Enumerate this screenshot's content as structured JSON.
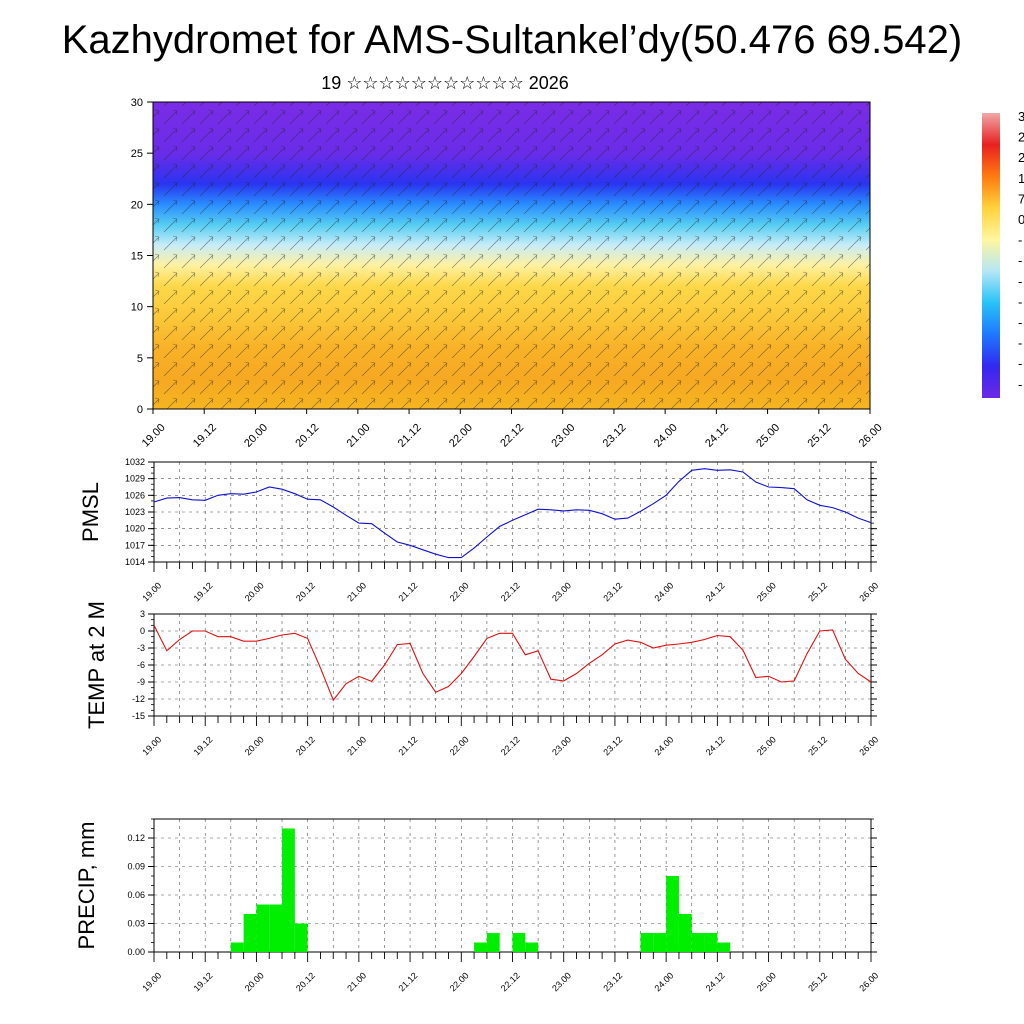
{
  "header": {
    "title": "Kazhydromet for AMS-Sultankel’dy(50.476 69.542)",
    "subtitle": "19 ☆☆☆☆☆☆☆☆☆☆☆ 2026"
  },
  "x_ticks": [
    "19.00",
    "19.12",
    "20.00",
    "20.12",
    "21.00",
    "21.12",
    "22.00",
    "22.12",
    "23.00",
    "23.12",
    "24.00",
    "24.12",
    "25.00",
    "25.12",
    "26.00"
  ],
  "colorbar": {
    "labels": [
      "3",
      "2",
      "2",
      "1",
      "7",
      "0",
      "-",
      "-",
      "-",
      "-",
      "-",
      "-",
      "-",
      "-"
    ],
    "colors": [
      "#f0a8a8",
      "#e82020",
      "#ff7a10",
      "#ffd23c",
      "#fff6a0",
      "#b4e6f6",
      "#28c3f5",
      "#1e78ff",
      "#3228f0",
      "#6e28e6"
    ]
  },
  "chart_data": [
    {
      "type": "heatmap",
      "title": "",
      "ylim": [
        0,
        30
      ],
      "y_ticks": [
        0,
        5,
        10,
        15,
        20,
        25,
        30
      ],
      "x_ticks": [
        "19.00",
        "19.12",
        "20.00",
        "20.12",
        "21.00",
        "21.12",
        "22.00",
        "22.12",
        "23.00",
        "23.12",
        "24.00",
        "24.12",
        "25.00",
        "25.12",
        "26.00"
      ],
      "rows": [
        {
          "level": 0,
          "color": "#f5b520"
        },
        {
          "level": 3,
          "color": "#f6a822"
        },
        {
          "level": 6,
          "color": "#f8b228"
        },
        {
          "level": 9,
          "color": "#fbc83a"
        },
        {
          "level": 12,
          "color": "#fdd84a"
        },
        {
          "level": 14,
          "color": "#fff0a0"
        },
        {
          "level": 16,
          "color": "#c8ecf8"
        },
        {
          "level": 18,
          "color": "#56cdf2"
        },
        {
          "level": 20,
          "color": "#2a8cff"
        },
        {
          "level": 22,
          "color": "#2a34f0"
        },
        {
          "level": 25,
          "color": "#6a2ce8"
        },
        {
          "level": 30,
          "color": "#7a2ce6"
        }
      ],
      "vectors": "wind barbs"
    },
    {
      "type": "line",
      "ylabel": "PMSL",
      "ylim": [
        1014,
        1032
      ],
      "y_ticks": [
        1014,
        1017,
        1020,
        1023,
        1026,
        1029,
        1032
      ],
      "color": "#1010d0",
      "x_ticks": [
        "19.00",
        "19.12",
        "20.00",
        "20.12",
        "21.00",
        "21.12",
        "22.00",
        "22.12",
        "23.00",
        "23.12",
        "24.00",
        "24.12",
        "25.00",
        "25.12",
        "26.00"
      ],
      "x": [
        0,
        3,
        6,
        9,
        12,
        15,
        18,
        21,
        24,
        27,
        30,
        33,
        36,
        39,
        42,
        45,
        48,
        51,
        54,
        57,
        60,
        63,
        66,
        69,
        72,
        75,
        78,
        81,
        84,
        87,
        90,
        93,
        96,
        99,
        102,
        105,
        108,
        111,
        114,
        117,
        120,
        123,
        126,
        129,
        132,
        135,
        138,
        141,
        144,
        147,
        150,
        153,
        156,
        159,
        162,
        165,
        168
      ],
      "values": [
        1024.8,
        1025.5,
        1025.6,
        1025.2,
        1025.1,
        1026.0,
        1026.3,
        1026.2,
        1026.6,
        1027.5,
        1027.1,
        1026.3,
        1025.3,
        1025.2,
        1023.9,
        1022.4,
        1021.0,
        1020.9,
        1019.2,
        1017.6,
        1017.0,
        1016.2,
        1015.4,
        1014.8,
        1014.8,
        1016.5,
        1018.5,
        1020.4,
        1021.5,
        1022.5,
        1023.5,
        1023.4,
        1023.2,
        1023.4,
        1023.3,
        1022.7,
        1021.7,
        1021.9,
        1023.1,
        1024.5,
        1026.0,
        1028.5,
        1030.5,
        1030.8,
        1030.5,
        1030.6,
        1030.2,
        1028.4,
        1027.5,
        1027.4,
        1027.2,
        1025.2,
        1024.2,
        1023.8,
        1023.0,
        1021.9,
        1021.1
      ]
    },
    {
      "type": "line",
      "ylabel": "TEMP at 2 M",
      "ylim": [
        -15,
        3
      ],
      "y_ticks": [
        -15,
        -12,
        -9,
        -6,
        -3,
        0,
        3
      ],
      "color": "#e01010",
      "x_ticks": [
        "19.00",
        "19.12",
        "20.00",
        "20.12",
        "21.00",
        "21.12",
        "22.00",
        "22.12",
        "23.00",
        "23.12",
        "24.00",
        "24.12",
        "25.00",
        "25.12",
        "26.00"
      ],
      "x": [
        0,
        3,
        6,
        9,
        12,
        15,
        18,
        21,
        24,
        27,
        30,
        33,
        36,
        39,
        42,
        45,
        48,
        51,
        54,
        57,
        60,
        63,
        66,
        69,
        72,
        75,
        78,
        81,
        84,
        87,
        90,
        93,
        96,
        99,
        102,
        105,
        108,
        111,
        114,
        117,
        120,
        123,
        126,
        129,
        132,
        135,
        138,
        141,
        144,
        147,
        150,
        153,
        156,
        159,
        162,
        165,
        168
      ],
      "values": [
        1.0,
        -3.5,
        -1.5,
        0.0,
        0.0,
        -1.0,
        -1.0,
        -1.8,
        -1.8,
        -1.3,
        -0.7,
        -0.4,
        -1.3,
        -6.5,
        -12.2,
        -9.3,
        -8.0,
        -8.9,
        -6.0,
        -2.4,
        -2.2,
        -7.5,
        -10.8,
        -9.8,
        -7.5,
        -4.5,
        -1.3,
        -0.4,
        -0.4,
        -4.2,
        -3.5,
        -8.5,
        -8.8,
        -7.5,
        -5.7,
        -4.2,
        -2.3,
        -1.6,
        -2.0,
        -3.0,
        -2.5,
        -2.3,
        -2.0,
        -1.5,
        -0.8,
        -1.0,
        -3.4,
        -8.2,
        -8.0,
        -9.0,
        -8.8,
        -4.0,
        0.0,
        0.2,
        -5.0,
        -7.5,
        -9.0
      ]
    },
    {
      "type": "bar",
      "ylabel": "PRECIP, mm",
      "ylim": [
        0,
        0.14
      ],
      "y_ticks": [
        "0.00",
        "0.03",
        "0.06",
        "0.09",
        "0.12"
      ],
      "color": "#00ee00",
      "x_ticks": [
        "19.00",
        "19.12",
        "20.00",
        "20.12",
        "21.00",
        "21.12",
        "22.00",
        "22.12",
        "23.00",
        "23.12",
        "24.00",
        "24.12",
        "25.00",
        "25.12",
        "26.00"
      ],
      "x": [
        18,
        21,
        24,
        27,
        30,
        33,
        75,
        78,
        84,
        87,
        114,
        117,
        120,
        123,
        126,
        129,
        132,
        135
      ],
      "values": [
        0.01,
        0.04,
        0.05,
        0.05,
        0.13,
        0.03,
        0.01,
        0.02,
        0.02,
        0.01,
        0.02,
        0.02,
        0.08,
        0.04,
        0.02,
        0.02,
        0.01,
        0.0
      ]
    }
  ]
}
